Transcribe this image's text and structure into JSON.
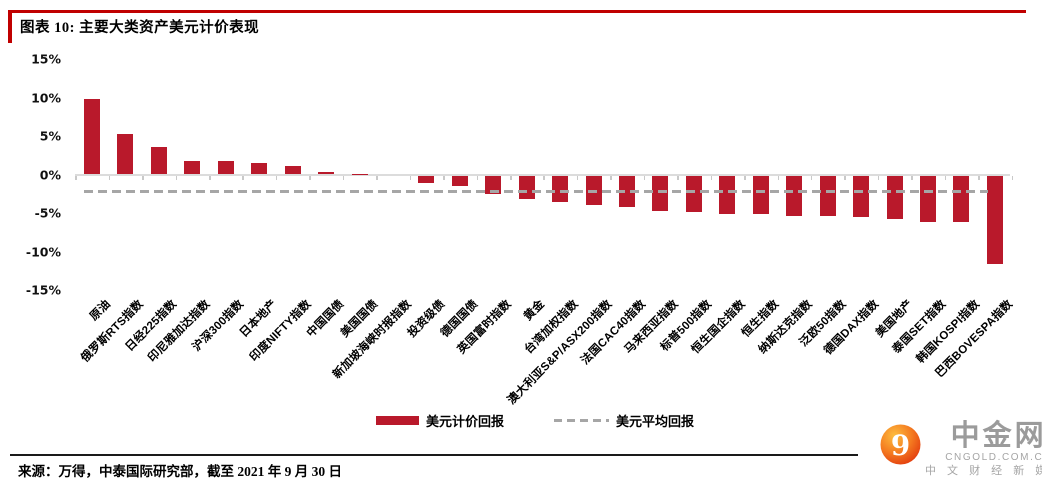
{
  "header": {
    "title": "图表 10:  主要大类资产美元计价表现"
  },
  "chart_data": {
    "type": "bar",
    "title": "图表 10: 主要大类资产美元计价表现",
    "categories": [
      "原油",
      "俄罗斯RTS指数",
      "日经225指数",
      "印尼雅加达指数",
      "沪深300指数",
      "日本地产",
      "印度NIFTY指数",
      "中国国债",
      "美国国债",
      "新加坡海峡时报指数",
      "投资级债",
      "德国国债",
      "英国富时指数",
      "黄金",
      "台湾加权指数",
      "澳大利亚S&P/ASX200指数",
      "法国CAC40指数",
      "马来西亚指数",
      "标普500指数",
      "恒生国企指数",
      "恒生指数",
      "纳斯达克指数",
      "泛欧50指数",
      "德国DAX指数",
      "美国地产",
      "泰国SET指数",
      "韩国KOSPI指数",
      "巴西BOVESPA指数"
    ],
    "values": [
      9.8,
      5.2,
      3.6,
      1.7,
      1.7,
      1.5,
      1.1,
      0.3,
      0.1,
      0.0,
      -1.0,
      -1.3,
      -2.4,
      -3.1,
      -3.5,
      -3.8,
      -4.1,
      -4.6,
      -4.7,
      -5.0,
      -5.0,
      -5.2,
      -5.3,
      -5.4,
      -5.6,
      -6.1,
      -6.0,
      -11.5
    ],
    "average_line": -2.2,
    "ylim": [
      -15,
      15
    ],
    "yticks": [
      15,
      10,
      5,
      0,
      -5,
      -10,
      -15
    ],
    "ytick_labels": [
      "15%",
      "10%",
      "5%",
      "0%",
      "-5%",
      "-10%",
      "-15%"
    ],
    "xlabel": "",
    "ylabel": "",
    "grid": false,
    "legend_position": "bottom",
    "bar_color": "#b9192b",
    "average_line_color": "#a6a6a6",
    "legend": [
      {
        "label": "美元计价回报",
        "swatch": "solid-bar",
        "color": "#b9192b"
      },
      {
        "label": "美元平均回报",
        "swatch": "dashed-line",
        "color": "#a6a6a6"
      }
    ]
  },
  "footer": {
    "source": "来源：万得，中泰国际研究部，截至 2021 年 9 月 30 日"
  },
  "logo": {
    "name": "中金网",
    "domain": "CNGOLD.COM.CN",
    "tagline": "中 文 财 经 新 媒 体",
    "icon": "cngold-9-swirl",
    "icon_colors": [
      "#fdbd3e",
      "#f47a20",
      "#e23a0e"
    ]
  }
}
